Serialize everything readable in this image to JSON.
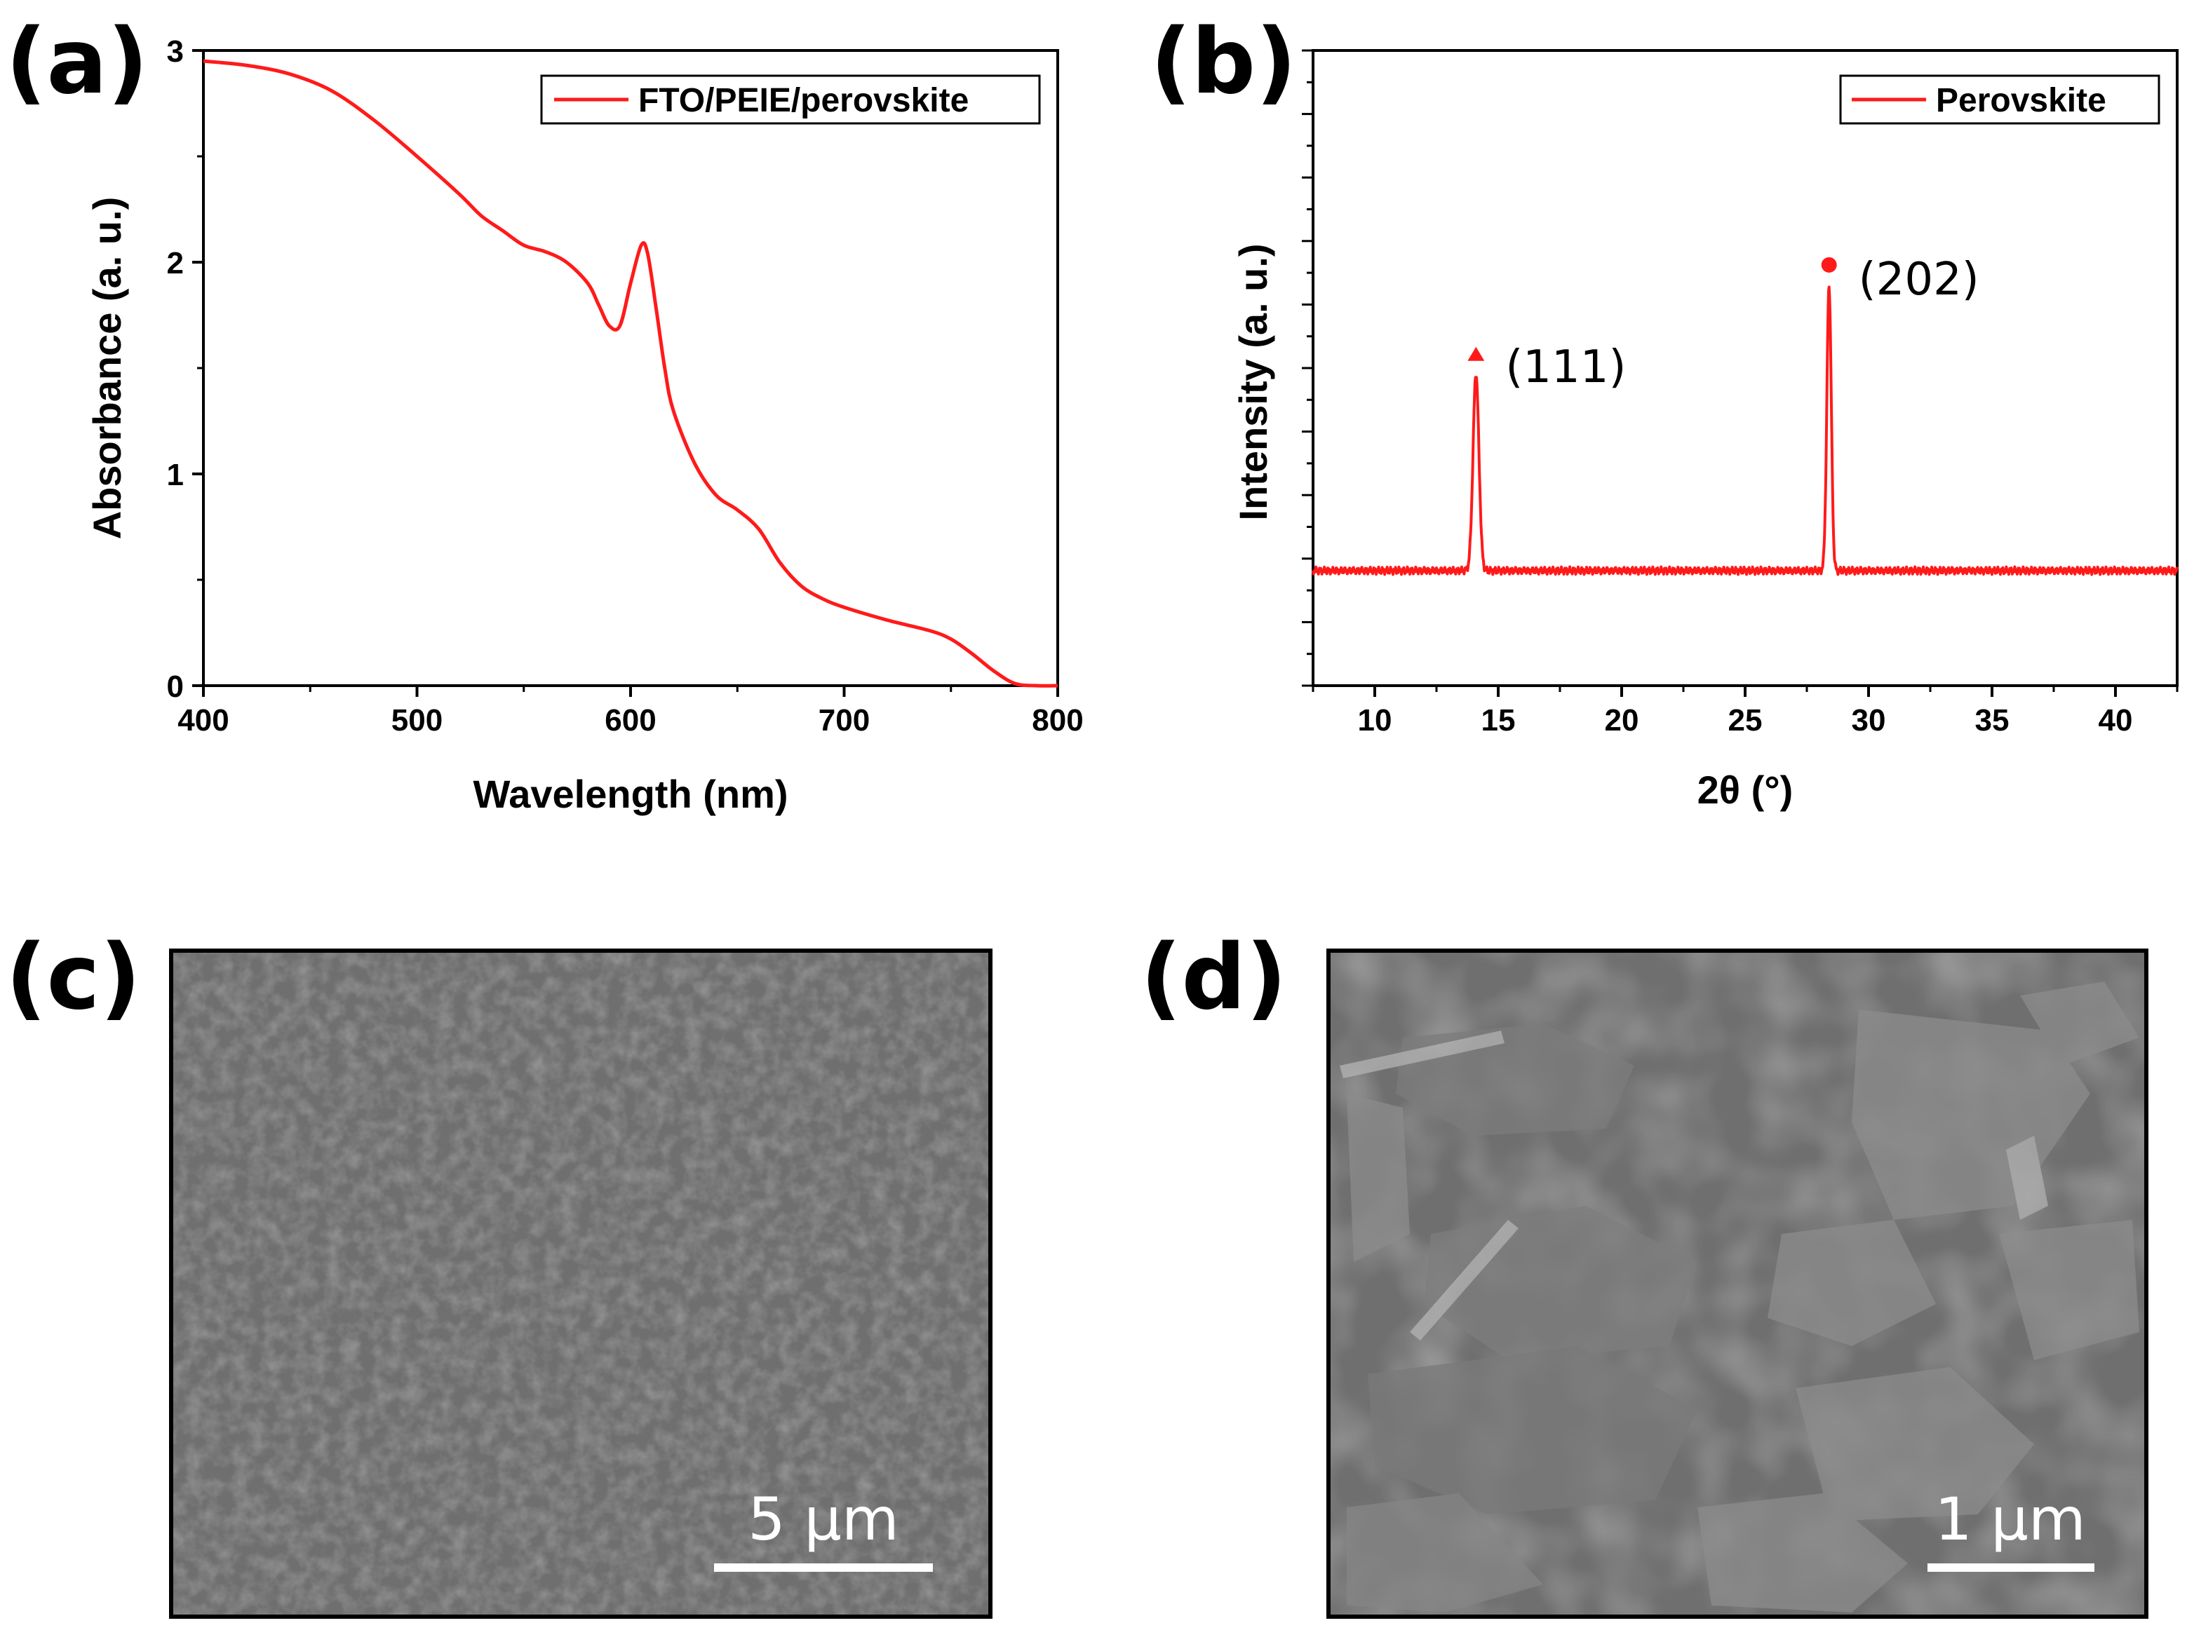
{
  "panels": {
    "a": {
      "label": "(a)"
    },
    "b": {
      "label": "(b)"
    },
    "c": {
      "label": "(c)",
      "scalebar_text": "5 µm"
    },
    "d": {
      "label": "(d)",
      "scalebar_text": "1 µm"
    }
  },
  "colors": {
    "series": "#ff1a1a",
    "axis": "#000000",
    "sem_bg": "#6f6f6f"
  },
  "chart_data": [
    {
      "panel": "(a)",
      "type": "line",
      "xlabel": "Wavelength (nm)",
      "ylabel": "Absorbance (a. u.)",
      "xlim": [
        400,
        800
      ],
      "ylim": [
        0,
        3
      ],
      "xticks": [
        400,
        500,
        600,
        700,
        800
      ],
      "xticks_minor": [
        450,
        550,
        650,
        750
      ],
      "yticks": [
        0,
        1,
        2,
        3
      ],
      "yticks_minor": [
        0.5,
        1.5,
        2.5
      ],
      "legend": "top-right",
      "grid": false,
      "series": [
        {
          "name": "FTO/PEIE/perovskite",
          "x": [
            400,
            420,
            440,
            460,
            480,
            500,
            520,
            530,
            540,
            550,
            560,
            570,
            580,
            585,
            590,
            595,
            600,
            605,
            608,
            612,
            616,
            620,
            630,
            640,
            650,
            660,
            670,
            680,
            690,
            700,
            720,
            740,
            750,
            760,
            770,
            780,
            790,
            800
          ],
          "y": [
            2.95,
            2.93,
            2.89,
            2.81,
            2.67,
            2.5,
            2.32,
            2.22,
            2.15,
            2.08,
            2.05,
            2.0,
            1.9,
            1.8,
            1.7,
            1.7,
            1.9,
            2.08,
            2.04,
            1.78,
            1.5,
            1.3,
            1.05,
            0.9,
            0.83,
            0.74,
            0.58,
            0.47,
            0.41,
            0.37,
            0.31,
            0.26,
            0.22,
            0.15,
            0.07,
            0.01,
            0.0,
            0.0
          ]
        }
      ]
    },
    {
      "panel": "(b)",
      "type": "line",
      "xlabel": "2θ (°)",
      "ylabel": "Intensity (a. u.)",
      "xlim": [
        7.5,
        42.5
      ],
      "ylim": [
        -0.16,
        1.0
      ],
      "xticks": [
        10,
        15,
        20,
        25,
        30,
        35,
        40
      ],
      "xticks_minor": [
        7.5,
        12.5,
        17.5,
        22.5,
        27.5,
        32.5,
        37.5,
        42.5
      ],
      "yticks": [],
      "legend": "top-right",
      "grid": false,
      "baseline": 0.05,
      "peaks": [
        {
          "center": 14.1,
          "height": 0.36,
          "width": 0.12
        },
        {
          "center": 28.4,
          "height": 0.52,
          "width": 0.09
        }
      ],
      "annotations": [
        {
          "text": "(111)",
          "x": 14.1,
          "marker": "triangle"
        },
        {
          "text": "(202)",
          "x": 28.4,
          "marker": "circle"
        }
      ],
      "series": [
        {
          "name": "Perovskite"
        }
      ]
    }
  ]
}
